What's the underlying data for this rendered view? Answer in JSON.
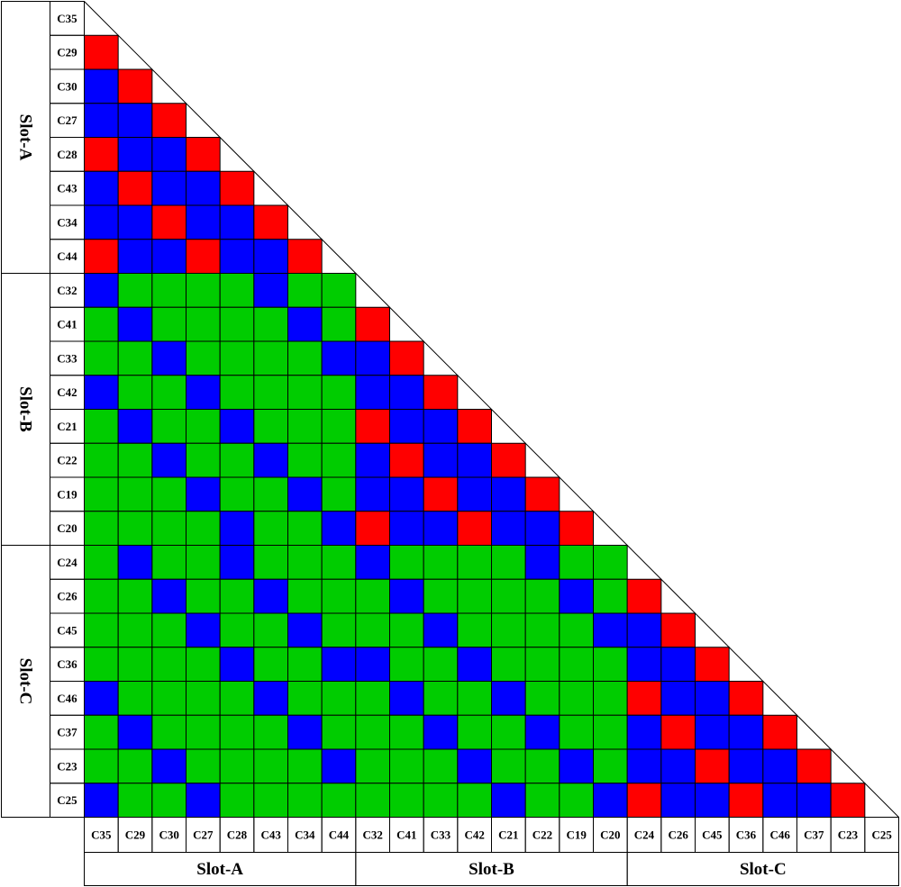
{
  "chart_data": {
    "type": "heatmap",
    "labels": [
      "C35",
      "C29",
      "C30",
      "C27",
      "C28",
      "C43",
      "C34",
      "C44",
      "C32",
      "C41",
      "C33",
      "C42",
      "C21",
      "C22",
      "C19",
      "C20",
      "C24",
      "C26",
      "C45",
      "C36",
      "C46",
      "C37",
      "C23",
      "C25"
    ],
    "groups": [
      {
        "name": "Slot-A",
        "start": 0,
        "end": 8
      },
      {
        "name": "Slot-B",
        "start": 8,
        "end": 16
      },
      {
        "name": "Slot-C",
        "start": 16,
        "end": 24
      }
    ],
    "legend": {
      "R": "#ff0000",
      "B": "#0000ff",
      "G": "#00cc00"
    },
    "cell_colors": [
      "",
      "R",
      "BR",
      "BBR",
      "RBBR",
      "BRBBR",
      "BBRBBR",
      "RBBRBBR",
      "BGGGGBGG",
      "GBGGGGBGR",
      "GGBGGGGBBR",
      "BGGBGGGGBBR",
      "GBGGBGGGRBBR",
      "GGBGGBGGBRBBR",
      "GGGBGGBGBBRBBR",
      "GGGGBGGBRBBRBBR",
      "GBGGBGGGBGGGGBGG",
      "GGBGGBGGGBGGGGBGR",
      "GGGBGGBGGGBGGGGBBR",
      "GGGGBGGBBGGBGGGGBBR",
      "BGGGGBGGGBGGBGGGRBBR",
      "GBGGGGBGGGBGGBGGBRBBR",
      "GGBGGGGBGGGBGGBGBBRBBR",
      "BGGBGGGGGGGGBGGBRBBRBBR"
    ]
  }
}
